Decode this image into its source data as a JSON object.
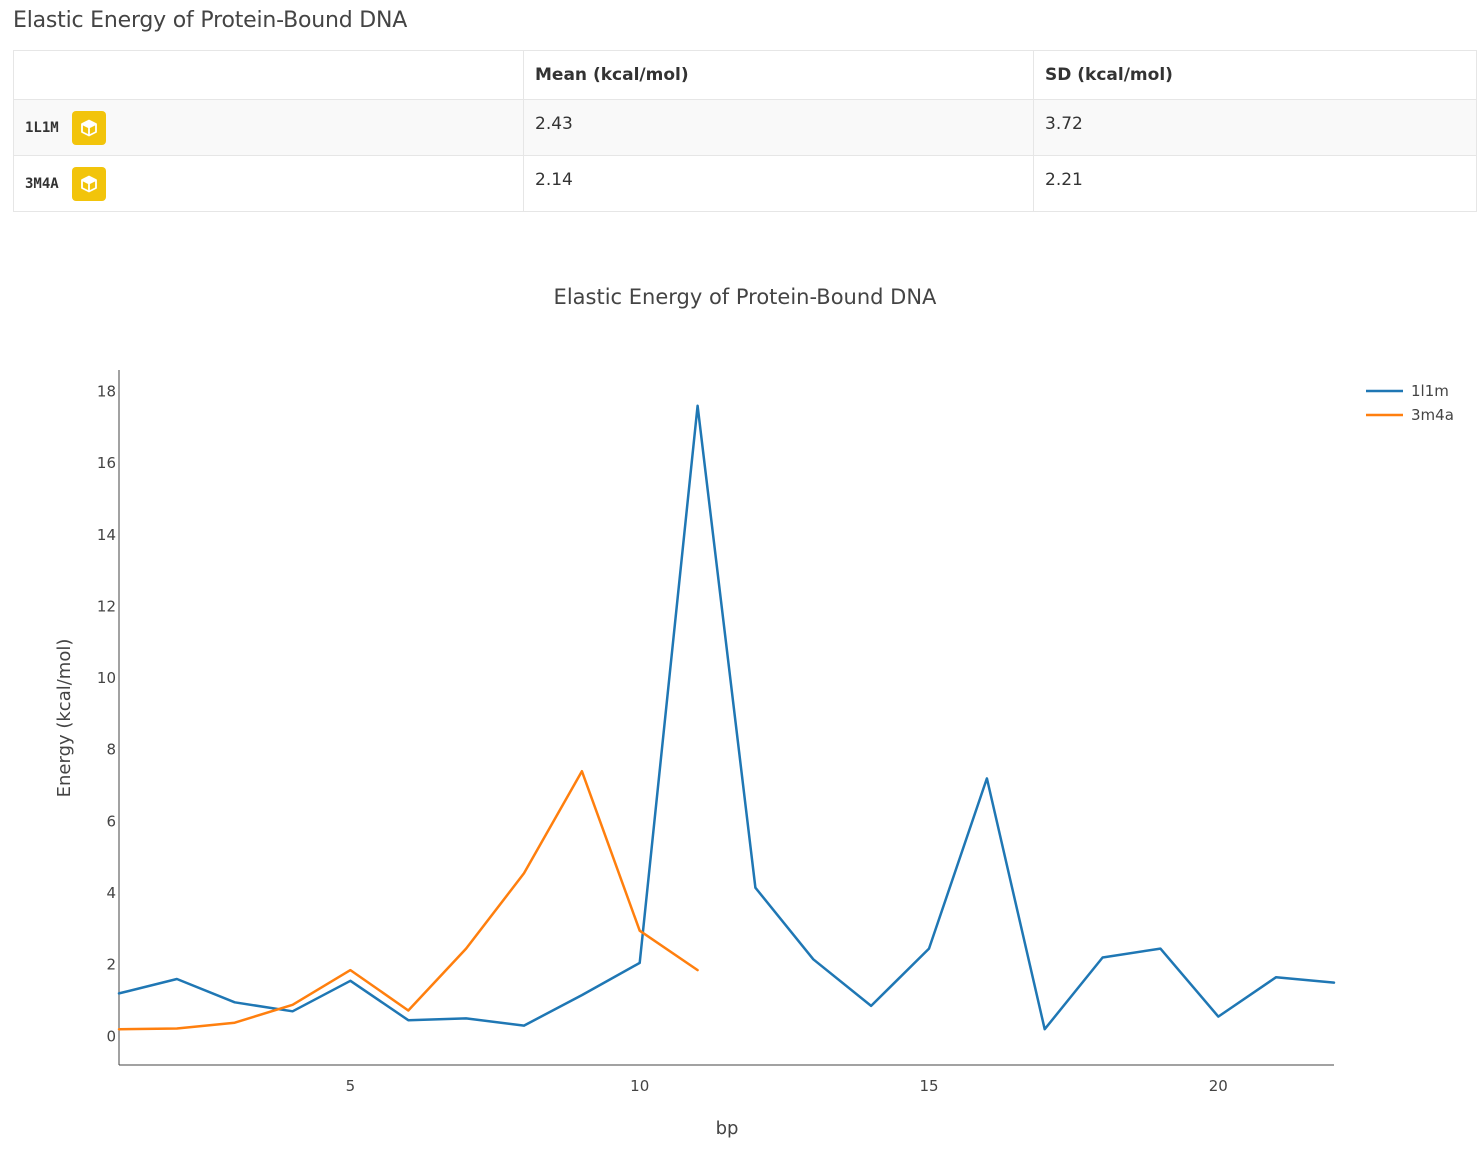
{
  "page": {
    "heading": "Elastic Energy of Protein-Bound DNA"
  },
  "table": {
    "headers": [
      "",
      "Mean (kcal/mol)",
      "SD (kcal/mol)"
    ],
    "rows": [
      {
        "id": "1L1M",
        "mean": "2.43",
        "sd": "3.72",
        "icon": "cube-icon"
      },
      {
        "id": "3M4A",
        "mean": "2.14",
        "sd": "2.21",
        "icon": "cube-icon"
      }
    ],
    "icon_color": "#f2c40b"
  },
  "chart_data": {
    "type": "line",
    "title": "Elastic Energy of Protein-Bound DNA",
    "xlabel": "bp",
    "ylabel": "Energy (kcal/mol)",
    "xlim": [
      1,
      22
    ],
    "ylim": [
      -0.8,
      18.6
    ],
    "xticks": [
      5,
      10,
      15,
      20
    ],
    "yticks": [
      0,
      2,
      4,
      6,
      8,
      10,
      12,
      14,
      16,
      18
    ],
    "legend_position": "top-right",
    "grid": false,
    "series": [
      {
        "name": "1l1m",
        "color": "#1f77b4",
        "x": [
          1,
          2,
          3,
          4,
          5,
          6,
          7,
          8,
          9,
          10,
          11,
          12,
          13,
          14,
          15,
          16,
          17,
          18,
          19,
          20,
          21,
          22
        ],
        "y": [
          1.2,
          1.6,
          0.95,
          0.7,
          1.55,
          0.45,
          0.5,
          0.3,
          1.15,
          2.05,
          17.6,
          4.15,
          2.15,
          0.85,
          2.45,
          7.2,
          0.2,
          2.2,
          2.45,
          0.55,
          1.65,
          1.5
        ]
      },
      {
        "name": "3m4a",
        "color": "#ff7f0e",
        "x": [
          1,
          2,
          3,
          4,
          5,
          6,
          7,
          8,
          9,
          10,
          11
        ],
        "y": [
          0.2,
          0.22,
          0.38,
          0.88,
          1.85,
          0.72,
          2.45,
          4.55,
          7.4,
          2.95,
          1.85
        ]
      }
    ]
  }
}
